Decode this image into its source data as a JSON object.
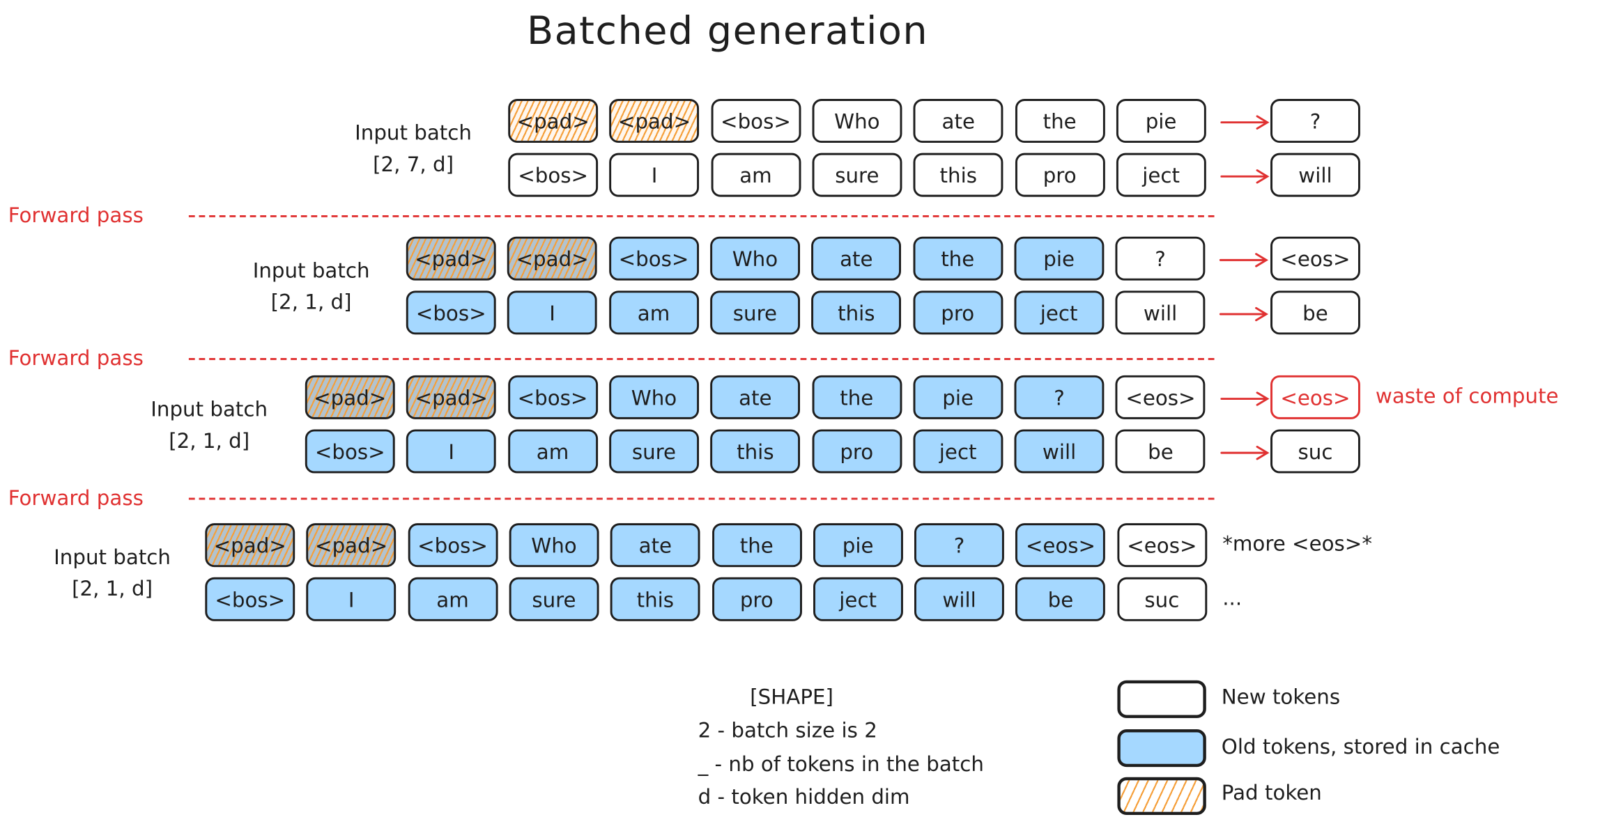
{
  "title": "Batched generation",
  "forward_pass_label": "Forward pass",
  "colors": {
    "old_token": "#a5d8ff",
    "pad_hatch": "#f59f3a",
    "accent_red": "#e03131",
    "stroke": "#1e1e1e"
  },
  "sections": [
    {
      "label": "Input batch",
      "shape": "[2, 7, d]",
      "rows": [
        {
          "tokens": [
            {
              "t": "<pad>",
              "type": "pad"
            },
            {
              "t": "<pad>",
              "type": "pad"
            },
            {
              "t": "<bos>",
              "type": "new"
            },
            {
              "t": "Who",
              "type": "new"
            },
            {
              "t": "ate",
              "type": "new"
            },
            {
              "t": "the",
              "type": "new"
            },
            {
              "t": "pie",
              "type": "new"
            }
          ],
          "output": "?"
        },
        {
          "tokens": [
            {
              "t": "<bos>",
              "type": "new"
            },
            {
              "t": "I",
              "type": "new"
            },
            {
              "t": "am",
              "type": "new"
            },
            {
              "t": "sure",
              "type": "new"
            },
            {
              "t": "this",
              "type": "new"
            },
            {
              "t": "pro",
              "type": "new"
            },
            {
              "t": "ject",
              "type": "new"
            }
          ],
          "output": "will"
        }
      ]
    },
    {
      "label": "Input batch",
      "shape": "[2, 1, d]",
      "rows": [
        {
          "tokens": [
            {
              "t": "<pad>",
              "type": "pad-old"
            },
            {
              "t": "<pad>",
              "type": "pad-old"
            },
            {
              "t": "<bos>",
              "type": "old"
            },
            {
              "t": "Who",
              "type": "old"
            },
            {
              "t": "ate",
              "type": "old"
            },
            {
              "t": "the",
              "type": "old"
            },
            {
              "t": "pie",
              "type": "old"
            },
            {
              "t": "?",
              "type": "new"
            }
          ],
          "output": "<eos>"
        },
        {
          "tokens": [
            {
              "t": "<bos>",
              "type": "old"
            },
            {
              "t": "I",
              "type": "old"
            },
            {
              "t": "am",
              "type": "old"
            },
            {
              "t": "sure",
              "type": "old"
            },
            {
              "t": "this",
              "type": "old"
            },
            {
              "t": "pro",
              "type": "old"
            },
            {
              "t": "ject",
              "type": "old"
            },
            {
              "t": "will",
              "type": "new"
            }
          ],
          "output": "be"
        }
      ]
    },
    {
      "label": "Input batch",
      "shape": "[2, 1, d]",
      "rows": [
        {
          "tokens": [
            {
              "t": "<pad>",
              "type": "pad-old"
            },
            {
              "t": "<pad>",
              "type": "pad-old"
            },
            {
              "t": "<bos>",
              "type": "old"
            },
            {
              "t": "Who",
              "type": "old"
            },
            {
              "t": "ate",
              "type": "old"
            },
            {
              "t": "the",
              "type": "old"
            },
            {
              "t": "pie",
              "type": "old"
            },
            {
              "t": "?",
              "type": "old"
            },
            {
              "t": "<eos>",
              "type": "new"
            }
          ],
          "output": "<eos>",
          "output_highlight": true,
          "annotation": "waste of compute"
        },
        {
          "tokens": [
            {
              "t": "<bos>",
              "type": "old"
            },
            {
              "t": "I",
              "type": "old"
            },
            {
              "t": "am",
              "type": "old"
            },
            {
              "t": "sure",
              "type": "old"
            },
            {
              "t": "this",
              "type": "old"
            },
            {
              "t": "pro",
              "type": "old"
            },
            {
              "t": "ject",
              "type": "old"
            },
            {
              "t": "will",
              "type": "old"
            },
            {
              "t": "be",
              "type": "new"
            }
          ],
          "output": "suc"
        }
      ]
    },
    {
      "label": "Input batch",
      "shape": "[2, 1, d]",
      "rows": [
        {
          "tokens": [
            {
              "t": "<pad>",
              "type": "pad-old"
            },
            {
              "t": "<pad>",
              "type": "pad-old"
            },
            {
              "t": "<bos>",
              "type": "old"
            },
            {
              "t": "Who",
              "type": "old"
            },
            {
              "t": "ate",
              "type": "old"
            },
            {
              "t": "the",
              "type": "old"
            },
            {
              "t": "pie",
              "type": "old"
            },
            {
              "t": "?",
              "type": "old"
            },
            {
              "t": "<eos>",
              "type": "old"
            },
            {
              "t": "<eos>",
              "type": "new"
            }
          ],
          "trailing": "*more <eos>*"
        },
        {
          "tokens": [
            {
              "t": "<bos>",
              "type": "old"
            },
            {
              "t": "I",
              "type": "old"
            },
            {
              "t": "am",
              "type": "old"
            },
            {
              "t": "sure",
              "type": "old"
            },
            {
              "t": "this",
              "type": "old"
            },
            {
              "t": "pro",
              "type": "old"
            },
            {
              "t": "ject",
              "type": "old"
            },
            {
              "t": "will",
              "type": "old"
            },
            {
              "t": "be",
              "type": "old"
            },
            {
              "t": "suc",
              "type": "new"
            }
          ],
          "trailing": "..."
        }
      ]
    }
  ],
  "shape_legend": {
    "heading": "[SHAPE]",
    "lines": [
      "2 - batch size is 2",
      "_ - nb of tokens in the batch",
      "d - token hidden dim"
    ]
  },
  "color_legend": [
    {
      "type": "new",
      "label": "New tokens"
    },
    {
      "type": "old",
      "label": "Old tokens, stored in cache"
    },
    {
      "type": "pad",
      "label": "Pad token"
    }
  ]
}
